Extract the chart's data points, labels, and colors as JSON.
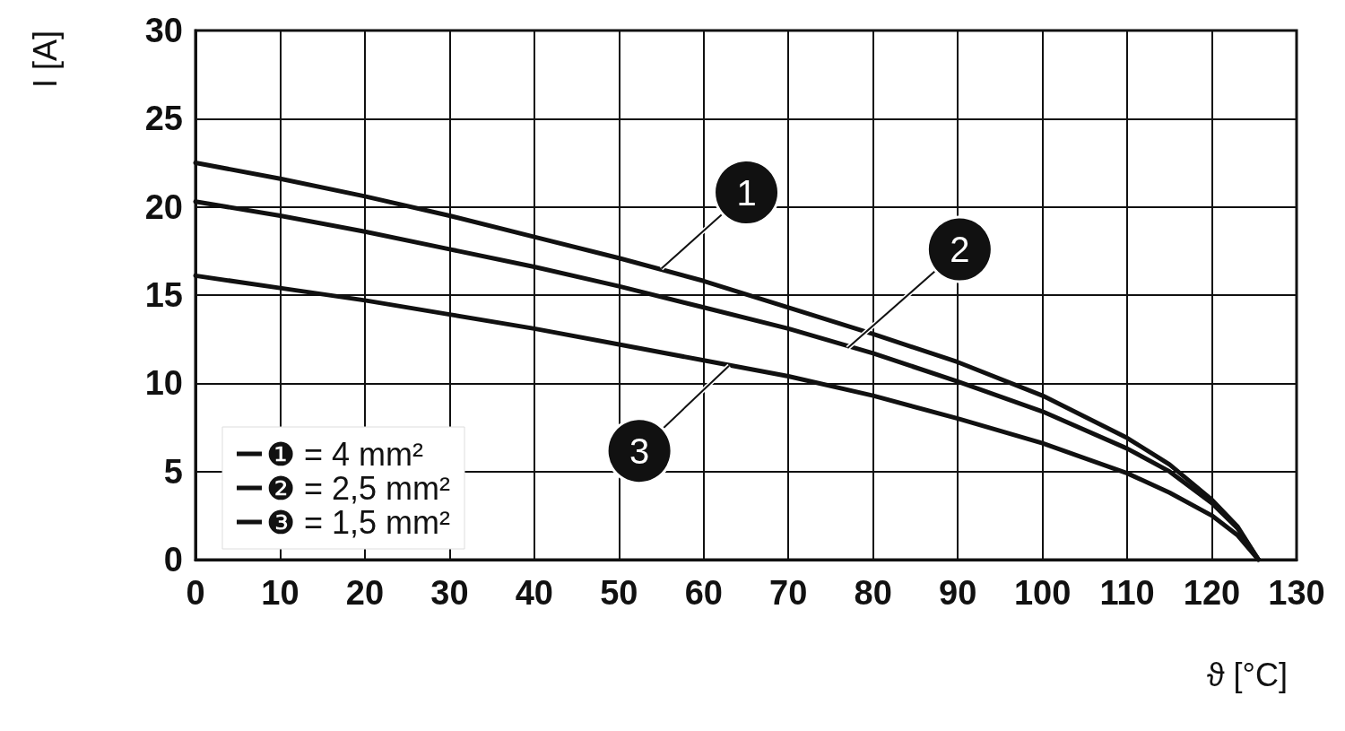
{
  "chart_data": {
    "type": "line",
    "xlabel": "ϑ [°C]",
    "ylabel": "I [A]",
    "x": [
      0,
      10,
      20,
      30,
      40,
      50,
      60,
      70,
      80,
      90,
      100,
      110,
      115,
      120,
      123,
      125.5
    ],
    "series": [
      {
        "name": "❶ = 4 mm²",
        "color": "#111111",
        "values": [
          22.5,
          21.6,
          20.6,
          19.5,
          18.3,
          17.1,
          15.8,
          14.3,
          12.8,
          11.2,
          9.3,
          6.9,
          5.4,
          3.4,
          1.9,
          0
        ]
      },
      {
        "name": "❷ = 2,5 mm²",
        "color": "#111111",
        "values": [
          20.3,
          19.5,
          18.6,
          17.6,
          16.6,
          15.5,
          14.3,
          13.1,
          11.7,
          10.1,
          8.4,
          6.3,
          5.0,
          3.2,
          1.8,
          0
        ]
      },
      {
        "name": "❸ = 1,5 mm²",
        "color": "#111111",
        "values": [
          16.1,
          15.4,
          14.7,
          13.9,
          13.1,
          12.2,
          11.3,
          10.4,
          9.3,
          8.0,
          6.6,
          4.9,
          3.8,
          2.5,
          1.4,
          0
        ]
      }
    ],
    "annotations": [
      {
        "text": "1",
        "x": 55,
        "y": 16.5
      },
      {
        "text": "2",
        "x": 77,
        "y": 12
      },
      {
        "text": "3",
        "x": 63,
        "y": 11
      }
    ],
    "xlim": [
      0,
      130
    ],
    "xticks": [
      0,
      10,
      20,
      30,
      40,
      50,
      60,
      70,
      80,
      90,
      100,
      110,
      120,
      130
    ],
    "ylim": [
      0,
      30
    ],
    "yticks": [
      0,
      5,
      10,
      15,
      20,
      25,
      30
    ],
    "grid": true,
    "legend": "bottom left",
    "marker": "none",
    "line_style": "solid"
  }
}
